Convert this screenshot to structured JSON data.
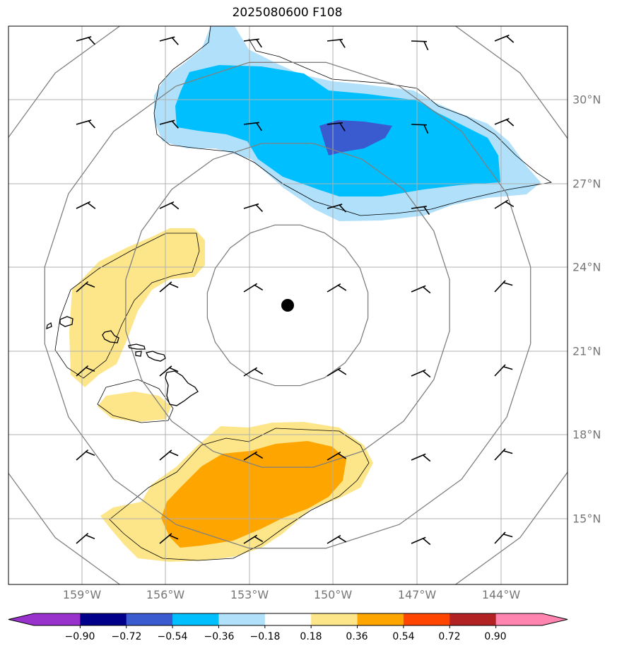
{
  "title": "2025080600 F108",
  "lon_labels": [
    "159°W",
    "156°W",
    "153°W",
    "150°W",
    "147°W",
    "144°W"
  ],
  "lat_labels": [
    "30°N",
    "27°N",
    "24°N",
    "21°N",
    "18°N",
    "15°N"
  ],
  "colorbar": {
    "ticks": [
      "−0.90",
      "−0.72",
      "−0.54",
      "−0.36",
      "−0.18",
      "0.18",
      "0.36",
      "0.54",
      "0.72",
      "0.90"
    ],
    "colors": [
      "#9932cc",
      "#00008b",
      "#3a5ad0",
      "#00bfff",
      "#b0e0fa",
      "#ffffff",
      "#fde68a",
      "#ffa500",
      "#ff4500",
      "#b22222",
      "#ff85b0"
    ]
  },
  "center_marker": "storm-center-dot",
  "line_color": "#808080"
}
